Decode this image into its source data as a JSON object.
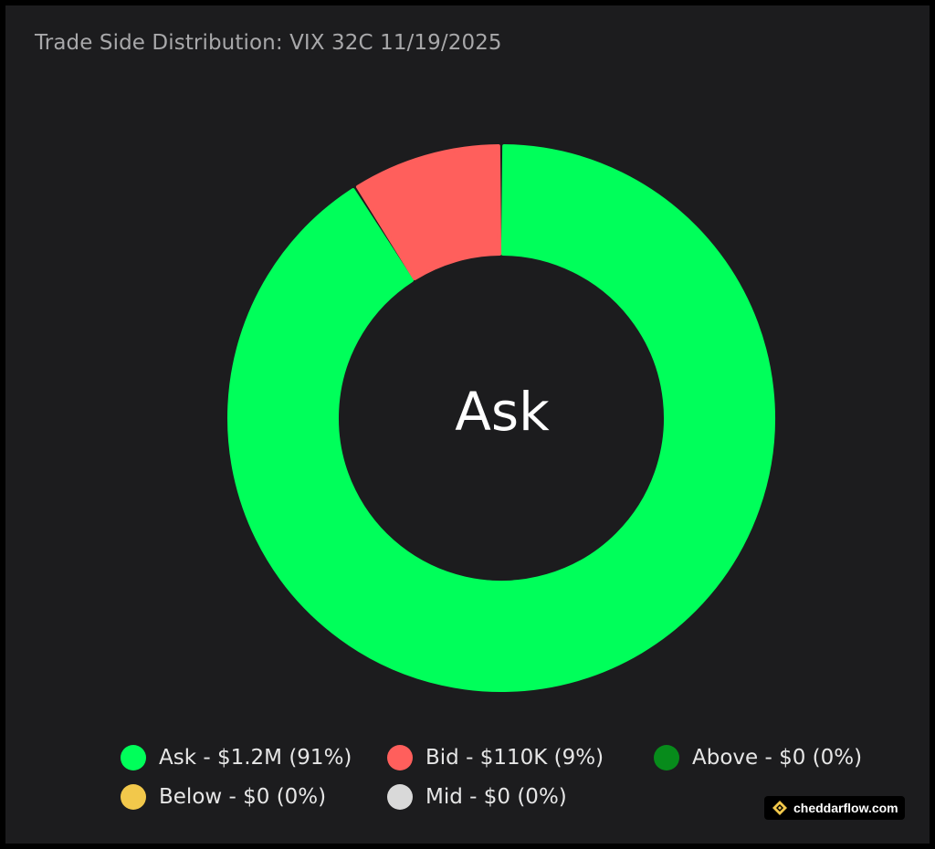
{
  "colors": {
    "background": "#1c1c1e",
    "outer_frame": "#000000"
  },
  "chart_data": {
    "type": "pie",
    "title": "Trade Side Distribution: VIX 32C 11/19/2025",
    "center_label": "Ask",
    "slices": [
      {
        "label": "Ask",
        "value_text": "$1.2M",
        "percent": 91,
        "legend_text": "Ask - $1.2M (91%)",
        "color": "#00ff5a"
      },
      {
        "label": "Bid",
        "value_text": "$110K",
        "percent": 9,
        "legend_text": "Bid - $110K (9%)",
        "color": "#ff5f5c"
      },
      {
        "label": "Above",
        "value_text": "$0",
        "percent": 0,
        "legend_text": "Above - $0 (0%)",
        "color": "#078b1b"
      },
      {
        "label": "Below",
        "value_text": "$0",
        "percent": 0,
        "legend_text": "Below - $0 (0%)",
        "color": "#f2c84b"
      },
      {
        "label": "Mid",
        "value_text": "$0",
        "percent": 0,
        "legend_text": "Mid - $0 (0%)",
        "color": "#d9d9d9"
      }
    ],
    "legend_placement": "bottom"
  },
  "watermark": {
    "text": "cheddarflow.com",
    "icon": "cheddarflow-logo-icon"
  }
}
